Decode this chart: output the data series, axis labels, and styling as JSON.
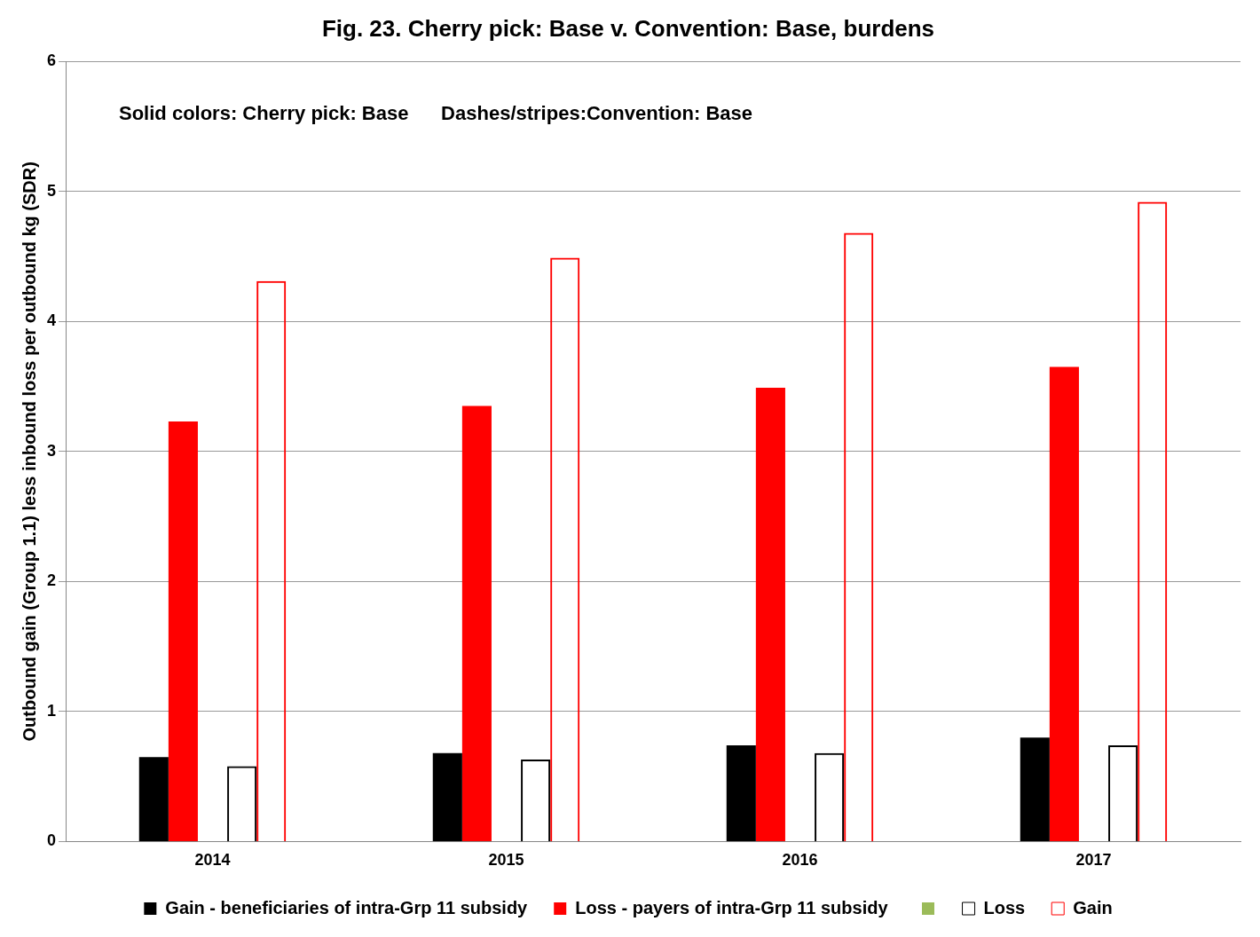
{
  "chart_data": {
    "type": "bar",
    "title": "Fig. 23. Cherry pick: Base v. Convention: Base, burdens",
    "annotations": [
      "Solid colors: Cherry pick: Base      Dashes/stripes:Convention: Base"
    ],
    "ylabel": "Outbound gain (Group 1.1) less inbound loss per outbound kg (SDR)",
    "categories": [
      "2014",
      "2015",
      "2016",
      "2017"
    ],
    "ylim": [
      0,
      6
    ],
    "yticks": [
      0,
      1,
      2,
      3,
      4,
      5,
      6
    ],
    "grid": "y",
    "legend": "bottom",
    "series": [
      {
        "name": "Gain - beneficiaries of intra-Grp 11 subsidy",
        "color": "#000000",
        "values": [
          0.65,
          0.68,
          0.74,
          0.8
        ]
      },
      {
        "name": "Loss - payers of intra-Grp 11 subsidy",
        "color": "#ff0000",
        "values": [
          3.23,
          3.35,
          3.49,
          3.65
        ]
      },
      {
        "name": "Loss",
        "color": "#000000",
        "line_style": "dashed",
        "values": [
          0.58,
          0.63,
          0.68,
          0.74
        ]
      },
      {
        "name": "Gain",
        "color": "#ff0000",
        "line_style": "dashed",
        "values": [
          4.31,
          4.49,
          4.68,
          4.92
        ]
      }
    ]
  }
}
